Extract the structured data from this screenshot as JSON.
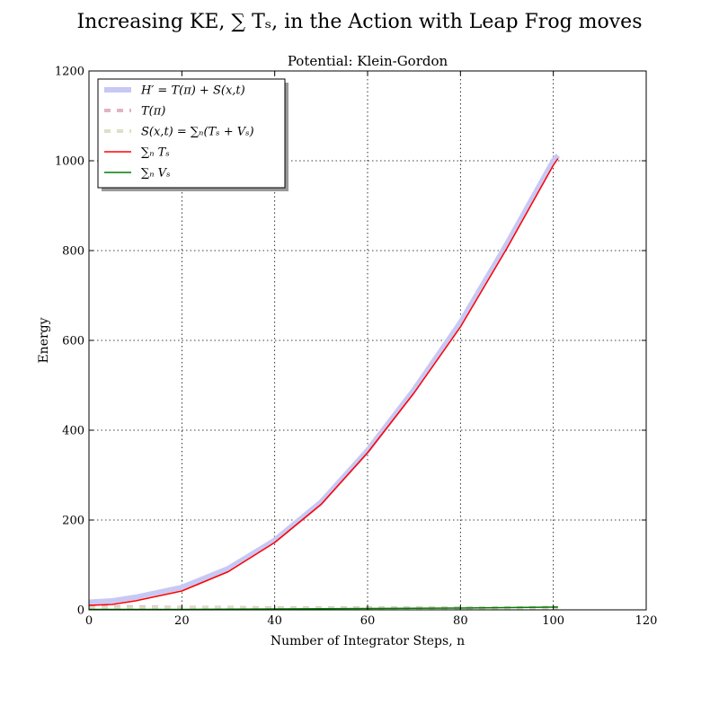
{
  "chart_data": {
    "type": "line",
    "suptitle": "Increasing KE, ∑ Tₛ, in the Action with Leap Frog moves",
    "title": "Potential: Klein-Gordon",
    "xlabel": "Number of Integrator Steps, n",
    "ylabel": "Energy",
    "xlim": [
      0,
      120
    ],
    "ylim": [
      0,
      1200
    ],
    "xticks": [
      "0",
      "20",
      "40",
      "60",
      "80",
      "100",
      "120"
    ],
    "yticks": [
      "0",
      "200",
      "400",
      "600",
      "800",
      "1000",
      "1200"
    ],
    "grid": true,
    "legend_position": "upper-left",
    "series": [
      {
        "name": "H′ = T(π) + S(x,t)",
        "color": "#c8c8f4",
        "style": "solid-thick",
        "x": [
          0,
          5,
          10,
          20,
          30,
          40,
          50,
          60,
          70,
          80,
          90,
          100,
          101
        ],
        "y": [
          17,
          20,
          28,
          50,
          92,
          155,
          240,
          355,
          490,
          640,
          815,
          1000,
          1012
        ]
      },
      {
        "name": "T(π)",
        "color": "#e0b4c4",
        "style": "dashed-thick",
        "x": [
          0,
          10,
          20,
          30,
          40,
          50,
          60,
          70,
          80,
          90,
          100,
          101
        ],
        "y": [
          7,
          6,
          5,
          5,
          4,
          4,
          4,
          4,
          4,
          4,
          5,
          5
        ]
      },
      {
        "name": "S(x,t) = ∑ₙ(Tₛ + Vₛ)",
        "color": "#dde0c4",
        "style": "dashed-thick",
        "x": [
          0,
          10,
          20,
          30,
          40,
          50,
          60,
          70,
          80,
          90,
          100,
          101
        ],
        "y": [
          4,
          4,
          4,
          4,
          3,
          3,
          3,
          3,
          3,
          3,
          3,
          3
        ]
      },
      {
        "name": "∑ₙ Tₛ",
        "color": "#ff0000",
        "style": "solid",
        "x": [
          0,
          5,
          10,
          20,
          30,
          40,
          50,
          60,
          70,
          80,
          90,
          100,
          101
        ],
        "y": [
          10,
          12,
          20,
          42,
          85,
          150,
          235,
          350,
          483,
          630,
          805,
          990,
          1005
        ]
      },
      {
        "name": "∑ₙ Vₛ",
        "color": "#007f00",
        "style": "solid",
        "x": [
          0,
          20,
          40,
          60,
          80,
          100,
          101
        ],
        "y": [
          1,
          1,
          2,
          3,
          4,
          6,
          6
        ]
      }
    ]
  }
}
